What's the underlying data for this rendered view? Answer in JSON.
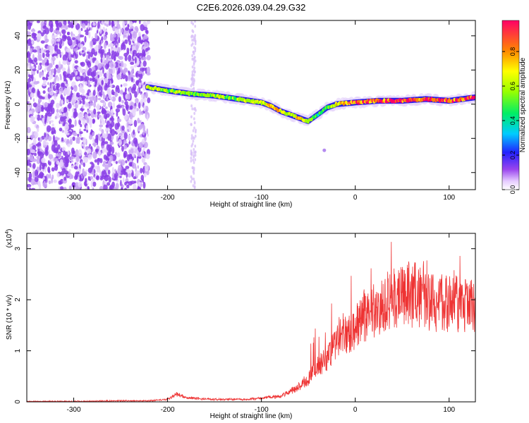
{
  "title": "C2E6.2026.039.04.29.G32",
  "chart_data": [
    {
      "type": "heatmap",
      "xlabel": "Height of straight line (km)",
      "ylabel": "Frequency (Hz)",
      "xlim": [
        -350,
        128
      ],
      "ylim": [
        -50,
        49
      ],
      "xticks": [
        -300,
        -200,
        -100,
        0,
        100
      ],
      "yticks": [
        -40,
        -20,
        0,
        20,
        40
      ],
      "grid": false,
      "noise_region_x": [
        -350,
        -220
      ],
      "stray_line_x": [
        -175,
        -170
      ],
      "trace": {
        "x": [
          -222,
          -200,
          -175,
          -150,
          -125,
          -100,
          -90,
          -80,
          -70,
          -60,
          -50,
          -40,
          -30,
          -20,
          0,
          25,
          50,
          75,
          100,
          128
        ],
        "y": [
          10,
          8,
          6,
          5,
          3,
          1,
          -1,
          -4,
          -6,
          -8,
          -10,
          -6,
          -2,
          0,
          1,
          2,
          2,
          3,
          2,
          4
        ],
        "amplitude": [
          0.6,
          0.55,
          0.5,
          0.55,
          0.55,
          0.6,
          0.7,
          0.7,
          0.6,
          0.7,
          0.55,
          0.4,
          0.5,
          0.7,
          0.8,
          0.85,
          0.9,
          0.9,
          0.85,
          0.85
        ]
      },
      "colorbar": {
        "label": "Normalized spectral amplitude",
        "range": [
          0,
          0.98
        ],
        "ticks": [
          0.0,
          0.2,
          0.4,
          0.6,
          0.8
        ],
        "tick_labels": [
          "0.0",
          "0.2",
          "0.4",
          "0.6",
          "0.8"
        ]
      }
    },
    {
      "type": "line",
      "xlabel": "Height of straight line (km)",
      "ylabel": "SNR (10 * v/v)",
      "y_multiplier": "(x10",
      "y_multiplier_exp": "4",
      "y_multiplier_close": ")",
      "xlim": [
        -350,
        128
      ],
      "ylim": [
        0,
        3.3
      ],
      "xticks": [
        -300,
        -200,
        -100,
        0,
        100
      ],
      "yticks": [
        0,
        1,
        2,
        3
      ],
      "color": "#ee3333",
      "series": [
        {
          "x": [
            -350,
            -300,
            -250,
            -220,
            -200,
            -190,
            -180,
            -150,
            -120,
            -100,
            -90,
            -80,
            -70,
            -60,
            -50,
            -40,
            -30,
            -20,
            -10,
            0,
            10,
            20,
            30,
            40,
            50,
            60,
            70,
            80,
            100,
            128
          ],
          "y": [
            0.01,
            0.01,
            0.02,
            0.02,
            0.05,
            0.15,
            0.08,
            0.05,
            0.05,
            0.07,
            0.1,
            0.1,
            0.2,
            0.3,
            0.45,
            0.7,
            0.85,
            1.2,
            1.3,
            1.45,
            1.65,
            1.8,
            1.9,
            2.05,
            2.1,
            2.05,
            2.1,
            1.95,
            1.9,
            1.9
          ]
        }
      ]
    }
  ]
}
